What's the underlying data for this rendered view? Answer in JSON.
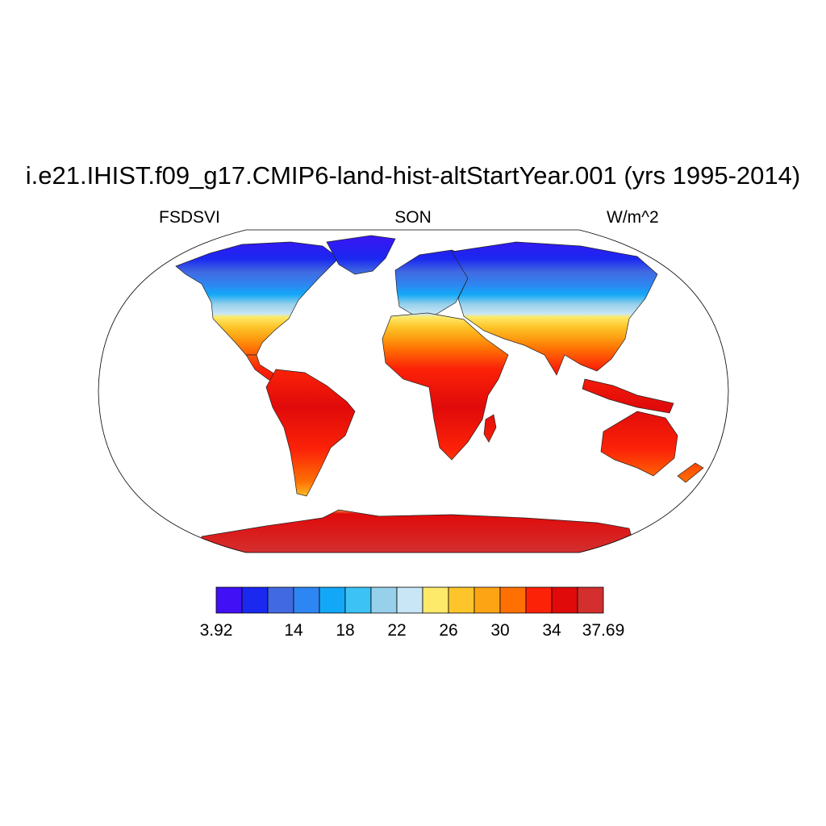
{
  "title": "i.e21.IHIST.f09_g17.CMIP6-land-hist-altStartYear.001 (yrs 1995-2014)",
  "variable": "FSDSVI",
  "season": "SON",
  "units": "W/m^2",
  "colorbar": {
    "min_label": "3.92",
    "max_label": "37.69",
    "tick_labels": [
      "14",
      "18",
      "22",
      "26",
      "30",
      "34"
    ],
    "colors": [
      "#4210f5",
      "#1a28f0",
      "#4169e1",
      "#2e86f2",
      "#12a8f7",
      "#3cc2f5",
      "#96d0eb",
      "#c8e6f6",
      "#fde96a",
      "#fdc52a",
      "#fda414",
      "#fe7004",
      "#fc2208",
      "#e00a0a",
      "#d32f2f"
    ]
  }
}
